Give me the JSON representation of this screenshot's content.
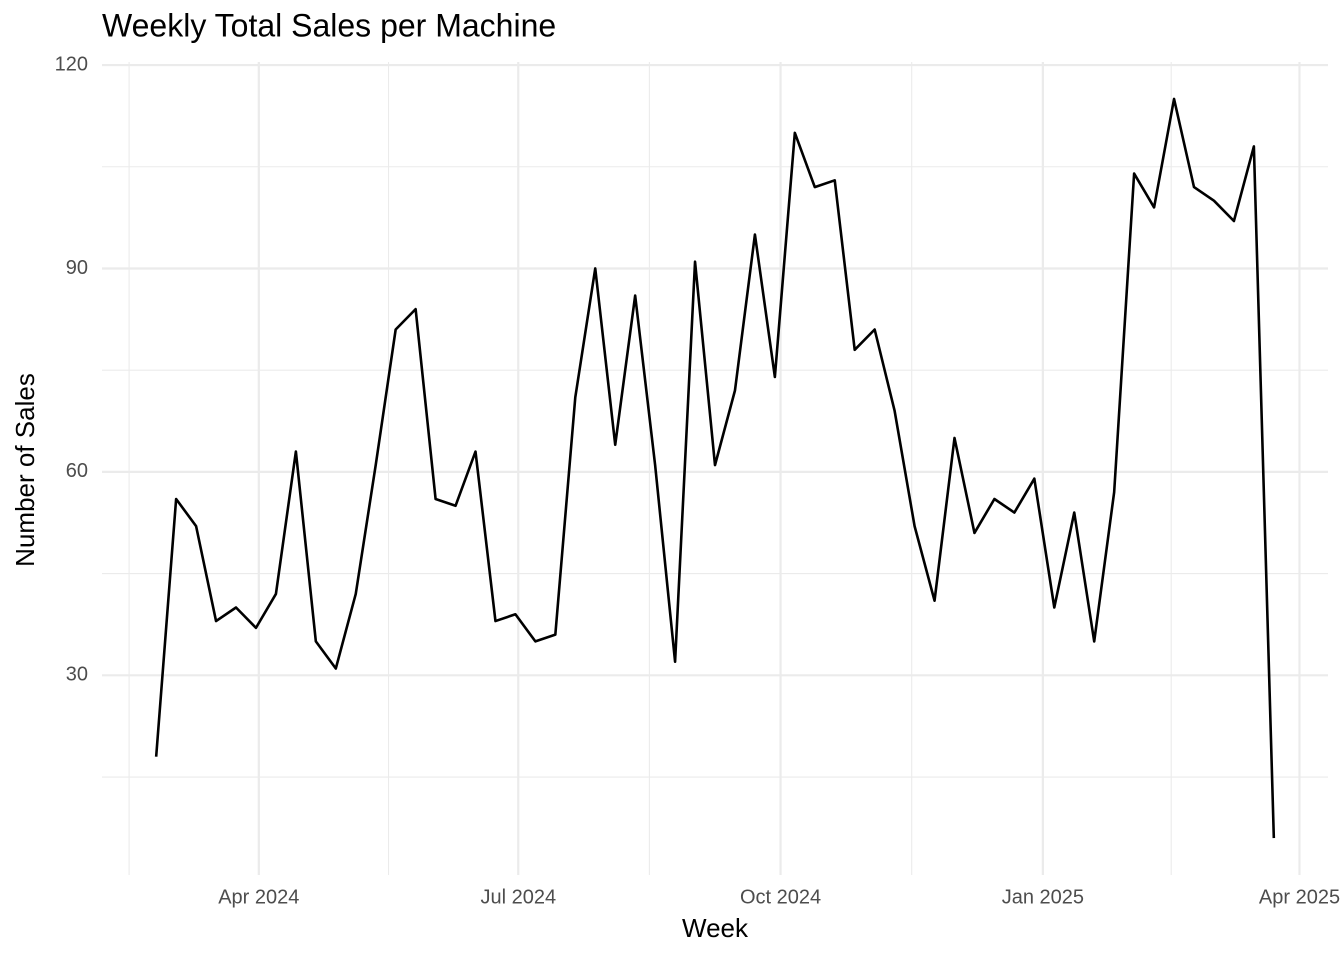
{
  "chart_data": {
    "type": "line",
    "title": "Weekly Total Sales per Machine",
    "x_label": "Week",
    "y_label": "Number of Sales",
    "x": [
      "2024-02-25",
      "2024-03-03",
      "2024-03-10",
      "2024-03-17",
      "2024-03-24",
      "2024-03-31",
      "2024-04-07",
      "2024-04-14",
      "2024-04-21",
      "2024-04-28",
      "2024-05-05",
      "2024-05-12",
      "2024-05-19",
      "2024-05-26",
      "2024-06-02",
      "2024-06-09",
      "2024-06-16",
      "2024-06-23",
      "2024-06-30",
      "2024-07-07",
      "2024-07-14",
      "2024-07-21",
      "2024-07-28",
      "2024-08-04",
      "2024-08-11",
      "2024-08-18",
      "2024-08-25",
      "2024-09-01",
      "2024-09-08",
      "2024-09-15",
      "2024-09-22",
      "2024-09-29",
      "2024-10-06",
      "2024-10-13",
      "2024-10-20",
      "2024-10-27",
      "2024-11-03",
      "2024-11-10",
      "2024-11-17",
      "2024-11-24",
      "2024-12-01",
      "2024-12-08",
      "2024-12-15",
      "2024-12-22",
      "2024-12-29",
      "2025-01-05",
      "2025-01-12",
      "2025-01-19",
      "2025-01-26",
      "2025-02-02",
      "2025-02-09",
      "2025-02-16",
      "2025-02-23",
      "2025-03-02",
      "2025-03-09",
      "2025-03-16",
      "2025-03-23"
    ],
    "series": [
      {
        "name": "Sales",
        "color": "#000000",
        "values": [
          18,
          56,
          52,
          38,
          40,
          37,
          42,
          63,
          35,
          31,
          42,
          61,
          81,
          84,
          56,
          55,
          63,
          38,
          39,
          35,
          36,
          71,
          90,
          64,
          86,
          61,
          32,
          91,
          61,
          72,
          95,
          74,
          110,
          102,
          103,
          78,
          81,
          69,
          52,
          41,
          65,
          51,
          56,
          54,
          59,
          40,
          54,
          35,
          57,
          104,
          99,
          115,
          102,
          100,
          97,
          108,
          6
        ]
      }
    ],
    "xlim": [
      "2024-02-06",
      "2025-04-11"
    ],
    "xticks": [
      {
        "value": "2024-04-01",
        "label": "Apr 2024"
      },
      {
        "value": "2024-07-01",
        "label": "Jul 2024"
      },
      {
        "value": "2024-10-01",
        "label": "Oct 2024"
      },
      {
        "value": "2025-01-01",
        "label": "Jan 2025"
      },
      {
        "value": "2025-04-01",
        "label": "Apr 2025"
      }
    ],
    "ylim": [
      0.55,
      120.45
    ],
    "yticks": [
      30,
      60,
      90,
      120
    ],
    "grid": true
  }
}
